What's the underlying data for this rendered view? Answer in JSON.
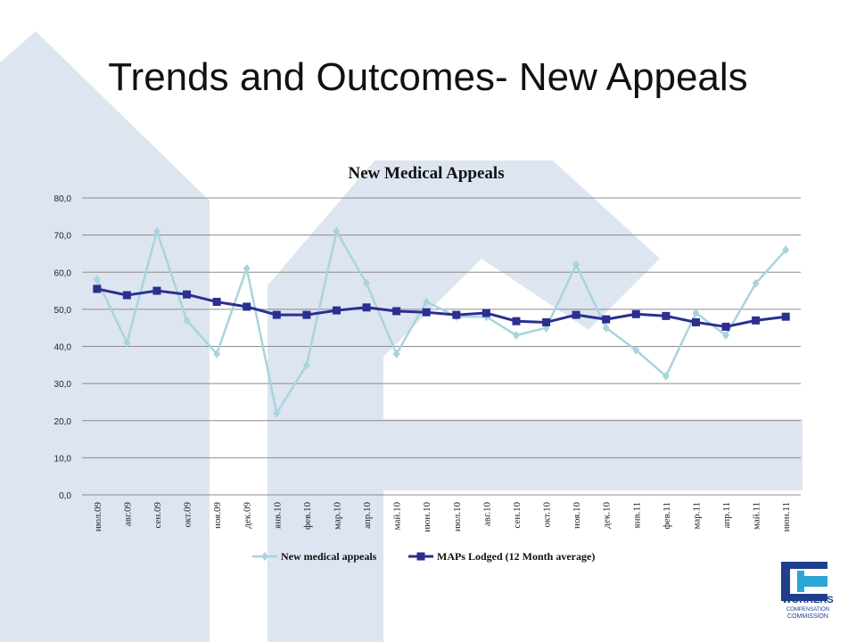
{
  "slide": {
    "title": "Trends and Outcomes- New Appeals"
  },
  "colors": {
    "background_shape": "#dde5f0",
    "series_light": "#a9d4dd",
    "series_dark": "#2b2f8f",
    "gridline": "#8c8c8c",
    "logo_blue": "#1f3f8c",
    "logo_cyan": "#2ba7d6"
  },
  "logo": {
    "line1": "WORKERS",
    "line2": "COMPENSATION",
    "line3": "COMMISSION"
  },
  "chart_data": {
    "type": "line",
    "title": "New Medical Appeals",
    "xlabel": "",
    "ylabel": "",
    "ylim": [
      0,
      80
    ],
    "yticks": [
      "0,0",
      "10,0",
      "20,0",
      "30,0",
      "40,0",
      "50,0",
      "60,0",
      "70,0",
      "80,0"
    ],
    "grid": true,
    "legend_position": "bottom",
    "categories": [
      "июл.09",
      "авг.09",
      "сен.09",
      "окт.09",
      "ноя.09",
      "дек.09",
      "янв.10",
      "фев.10",
      "мар.10",
      "апр.10",
      "май.10",
      "июн.10",
      "июл.10",
      "авг.10",
      "сен.10",
      "окт.10",
      "ноя.10",
      "дек.10",
      "янв.11",
      "фев.11",
      "мар.11",
      "апр.11",
      "май.11",
      "июн.11"
    ],
    "series": [
      {
        "name": "New medical appeals",
        "color": "#a9d4dd",
        "marker": "diamond",
        "values": [
          58,
          41,
          71,
          47,
          38,
          61,
          22,
          35,
          71,
          57,
          38,
          52,
          48,
          48,
          43,
          45,
          62,
          45,
          39,
          32,
          49,
          43,
          57,
          66
        ]
      },
      {
        "name": "MAPs Lodged (12 Month average)",
        "color": "#2b2f8f",
        "marker": "square",
        "values": [
          55.5,
          53.8,
          55.0,
          54.0,
          52.0,
          50.7,
          48.5,
          48.5,
          49.7,
          50.5,
          49.5,
          49.2,
          48.5,
          49.0,
          46.8,
          46.5,
          48.5,
          47.3,
          48.7,
          48.2,
          46.5,
          45.3,
          47.0,
          48.0
        ]
      }
    ]
  }
}
